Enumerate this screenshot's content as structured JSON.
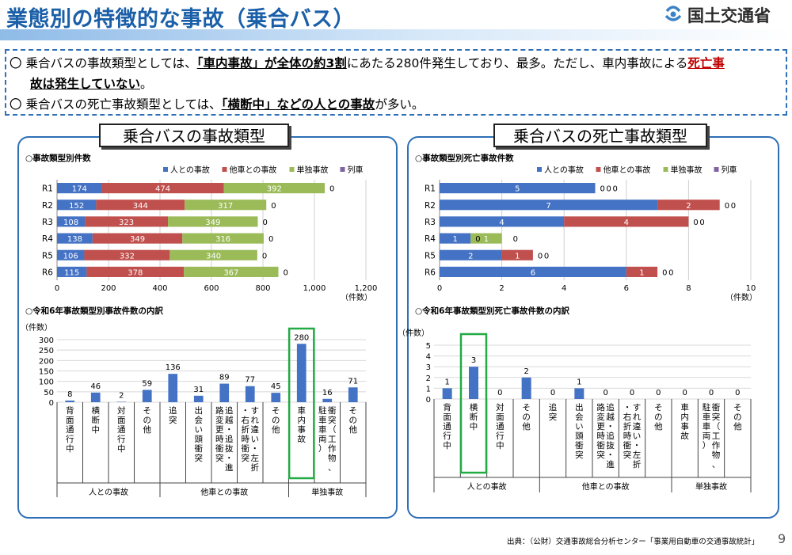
{
  "header": {
    "title": "業態別の特徴的な事故（乗合バス）",
    "logo_text": "国土交通省"
  },
  "summary": {
    "line1_a": "乗合バスの事故類型としては、",
    "line1_b": "「車内事故」",
    "line1_c": "が全体の約3割",
    "line1_d": "にあたる280件発生しており、最多。ただし、車内事故による",
    "line1_e": "死亡事",
    "line2_a": "故は発生していない",
    "line2_b": "。",
    "line3_a": "乗合バスの死亡事故類型としては、",
    "line3_b": "「横断中」",
    "line3_c": "などの人との事故",
    "line3_d": "が多い。"
  },
  "panels": {
    "left_title": "乗合バスの事故類型",
    "right_title": "乗合バスの死亡事故類型"
  },
  "source": "出典：（公財）交通事故総合分析センター「事業用自動車の交通事故統計」",
  "page_number": "9",
  "colors": {
    "person": "#4472c4",
    "vehicle": "#c0504d",
    "single": "#9bbb59",
    "train": "#8064a2",
    "highlight": "#22aa44"
  },
  "chart_data": [
    {
      "type": "bar",
      "orientation": "horizontal-stacked",
      "title": "○事故類型別件数",
      "categories": [
        "R1",
        "R2",
        "R3",
        "R4",
        "R5",
        "R6"
      ],
      "series": [
        {
          "name": "人との事故",
          "values": [
            174,
            152,
            108,
            138,
            106,
            115
          ]
        },
        {
          "name": "他車との事故",
          "values": [
            474,
            344,
            323,
            349,
            332,
            378
          ]
        },
        {
          "name": "単独事故",
          "values": [
            392,
            317,
            349,
            316,
            340,
            367
          ]
        },
        {
          "name": "列車",
          "values": [
            0,
            0,
            0,
            0,
            0,
            0
          ]
        }
      ],
      "xlim": [
        0,
        1200
      ],
      "xticks": [
        "0",
        "200",
        "400",
        "600",
        "800",
        "1,000",
        "1,200"
      ],
      "xlabel": "（件数）",
      "legend": "top"
    },
    {
      "type": "bar",
      "orientation": "horizontal-stacked",
      "title": "○事故類型別死亡事故件数",
      "categories": [
        "R1",
        "R2",
        "R3",
        "R4",
        "R5",
        "R6"
      ],
      "series": [
        {
          "name": "人との事故",
          "values": [
            5,
            7,
            4,
            1,
            2,
            6
          ]
        },
        {
          "name": "他車との事故",
          "values": [
            0,
            2,
            4,
            0,
            1,
            1
          ]
        },
        {
          "name": "単独事故",
          "values": [
            0,
            0,
            0,
            1,
            0,
            0
          ]
        },
        {
          "name": "列車",
          "values": [
            0,
            0,
            0,
            0,
            0,
            0
          ]
        }
      ],
      "xlim": [
        0,
        10
      ],
      "xticks": [
        "0",
        "2",
        "4",
        "6",
        "8",
        "10"
      ],
      "xlabel": "（件数）",
      "legend": "top"
    },
    {
      "type": "bar",
      "title": "○令和6年事故類型別事故件数の内訳",
      "ylabel": "（件数）",
      "ylim": [
        0,
        300
      ],
      "yticks": [
        "0",
        "50",
        "100",
        "150",
        "200",
        "250",
        "300"
      ],
      "categories": [
        "背面通行中",
        "横断中",
        "対面通行中",
        "その他",
        "追突",
        "出会い頭衝突",
        "追越・追抜・進路変更時衝突",
        "すれ違い・左折・右折時衝突",
        "その他",
        "車内事故",
        "衝突（工作物、駐車車両）",
        "その他"
      ],
      "values": [
        8,
        46,
        2,
        59,
        136,
        31,
        89,
        77,
        45,
        280,
        16,
        71
      ],
      "groups": [
        {
          "name": "人との事故",
          "count": 4
        },
        {
          "name": "他車との事故",
          "count": 5
        },
        {
          "name": "単独事故",
          "count": 3
        }
      ],
      "highlight_index": 9
    },
    {
      "type": "bar",
      "title": "○令和6年事故類型別死亡事故件数の内訳",
      "ylabel": "（件数）",
      "ylim": [
        0,
        5
      ],
      "yticks": [
        "0",
        "1",
        "2",
        "3",
        "4",
        "5"
      ],
      "categories": [
        "背面通行中",
        "横断中",
        "対面通行中",
        "その他",
        "追突",
        "出会い頭衝突",
        "追越・追抜・進路変更時衝突",
        "すれ違い・左折・右折時衝突",
        "その他",
        "車内事故",
        "衝突（工作物、駐車車両）",
        "その他"
      ],
      "values": [
        1,
        3,
        0,
        2,
        0,
        1,
        0,
        0,
        0,
        0,
        0,
        0
      ],
      "groups": [
        {
          "name": "人との事故",
          "count": 4
        },
        {
          "name": "他車との事故",
          "count": 5
        },
        {
          "name": "単独事故",
          "count": 3
        }
      ],
      "highlight_index": 1
    }
  ]
}
